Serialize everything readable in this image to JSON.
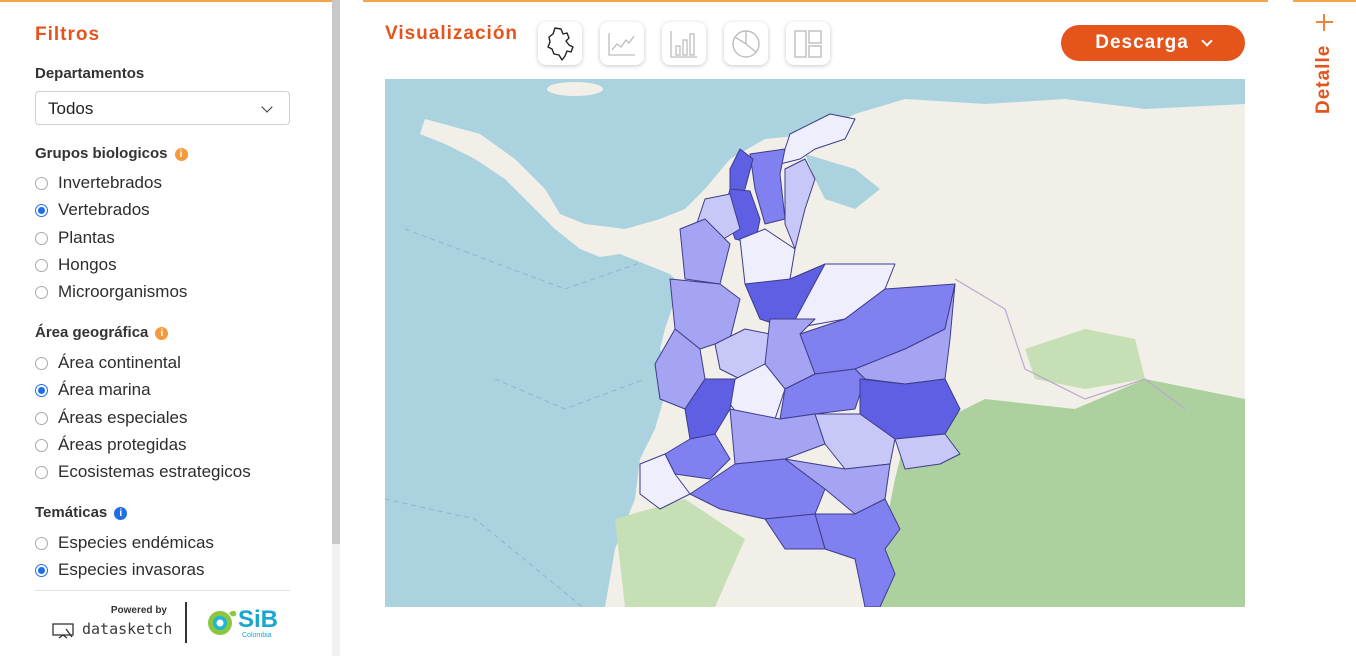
{
  "sidebar": {
    "title": "Filtros",
    "departamentos": {
      "label": "Departamentos",
      "selected": "Todos"
    },
    "grupos": {
      "label": "Grupos biologicos",
      "options": [
        {
          "label": "Invertebrados",
          "checked": false
        },
        {
          "label": "Vertebrados",
          "checked": true
        },
        {
          "label": "Plantas",
          "checked": false
        },
        {
          "label": "Hongos",
          "checked": false
        },
        {
          "label": "Microorganismos",
          "checked": false
        }
      ]
    },
    "area": {
      "label": "Área geográfica",
      "options": [
        {
          "label": "Área continental",
          "checked": false
        },
        {
          "label": "Área marina",
          "checked": true
        },
        {
          "label": "Áreas especiales",
          "checked": false
        },
        {
          "label": "Áreas protegidas",
          "checked": false
        },
        {
          "label": "Ecosistemas estrategicos",
          "checked": false
        }
      ]
    },
    "tematicas": {
      "label": "Temáticas",
      "options": [
        {
          "label": "Especies endémicas",
          "checked": false
        },
        {
          "label": "Especies invasoras",
          "checked": true
        }
      ]
    },
    "footer": {
      "powered_by": "Powered by",
      "brand": "datasketch",
      "partner": "SiB",
      "partner_sub": "Colombia"
    }
  },
  "main": {
    "title": "Visualización",
    "viz_buttons": [
      {
        "icon": "map-icon",
        "name": "viz-map-button"
      },
      {
        "icon": "line-chart-icon",
        "name": "viz-line-button"
      },
      {
        "icon": "bar-chart-icon",
        "name": "viz-bar-button"
      },
      {
        "icon": "pie-chart-icon",
        "name": "viz-pie-button"
      },
      {
        "icon": "treemap-icon",
        "name": "viz-treemap-button"
      }
    ],
    "download_label": "Descarga"
  },
  "detail": {
    "label": "Detalle"
  },
  "colors": {
    "accent": "#e5541b",
    "accent_line": "#f6a54a",
    "radio_blue": "#1d6fe6",
    "map_sea": "#aad3df",
    "map_land": "#f2efe9",
    "map_green": "#add19e",
    "choropleth": [
      "#eeeefd",
      "#c8c8f8",
      "#a4a4f3",
      "#8080f0",
      "#5f5fe3"
    ]
  }
}
